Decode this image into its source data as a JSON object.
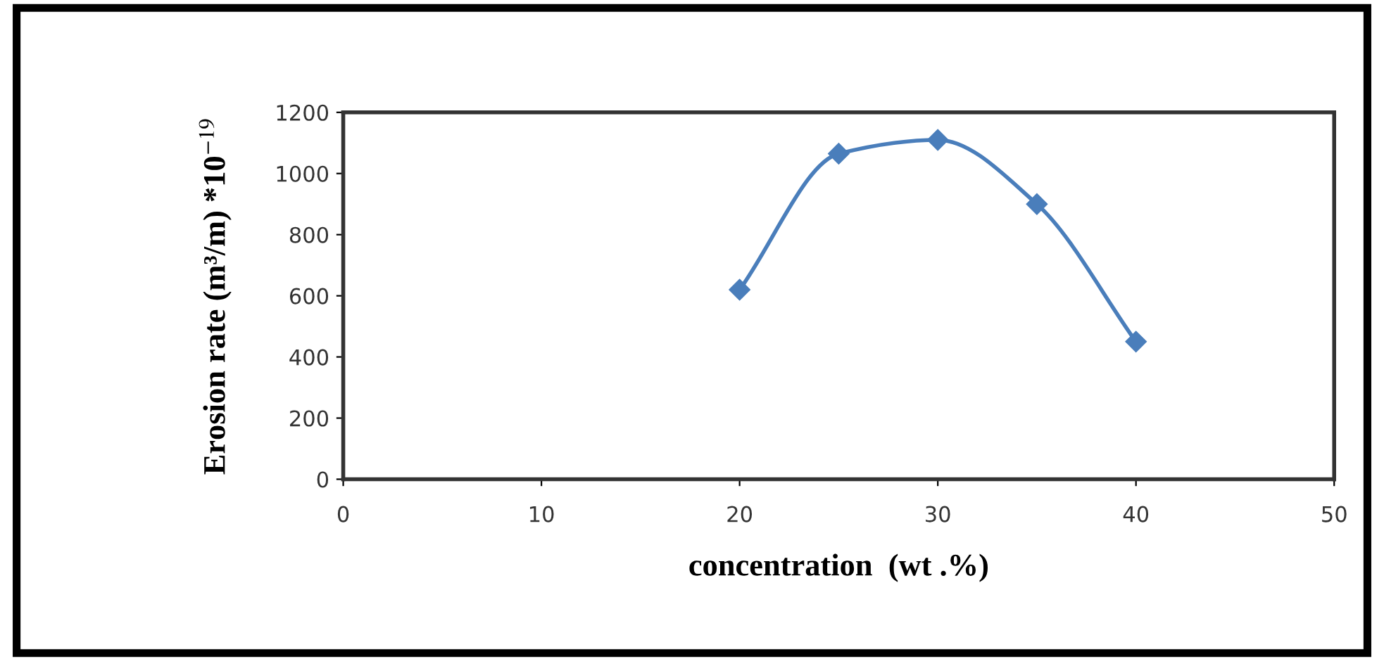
{
  "chart_data": {
    "type": "line",
    "xlabel": "concentration  (wt .%)",
    "ylabel": "Erosion rate (m³/m) *10$^{−19}$",
    "x": [
      20,
      25,
      30,
      35,
      40
    ],
    "series": [
      {
        "color": "#4a7ebb",
        "values": [
          620,
          1065,
          1110,
          900,
          450
        ]
      }
    ],
    "xlim": [
      0,
      50
    ],
    "xticks": [
      0,
      10,
      20,
      30,
      40,
      50
    ],
    "ylim": [
      0,
      1200
    ],
    "yticks": [
      0,
      200,
      400,
      600,
      800,
      1000,
      1200
    ],
    "grid": false,
    "marker": "diamond",
    "line_style": "solid"
  }
}
